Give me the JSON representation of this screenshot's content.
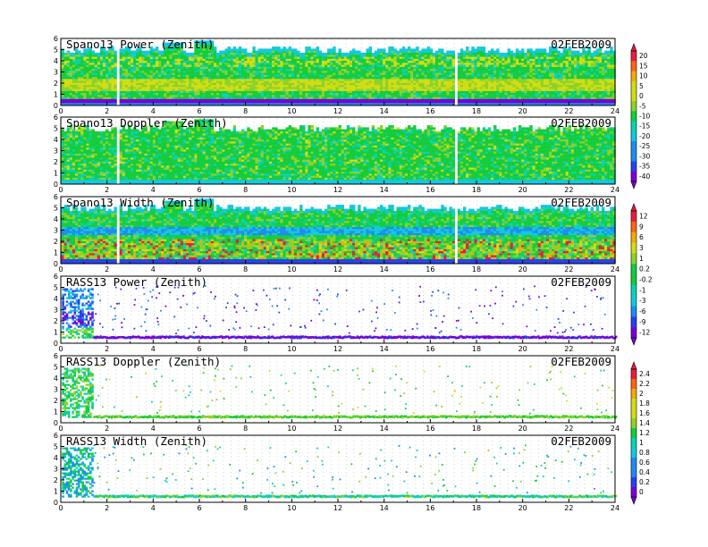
{
  "chart_data": [
    {
      "type": "heatmap",
      "title": "Spano13 Power (Zenith)",
      "date": "02FEB2009",
      "xlim": [
        0,
        24
      ],
      "ylim": [
        0,
        6
      ],
      "xticks": [
        "0",
        "2",
        "4",
        "6",
        "8",
        "10",
        "12",
        "14",
        "16",
        "18",
        "20",
        "22",
        "24"
      ],
      "yticks": [
        "0",
        "1",
        "2",
        "3",
        "4",
        "5",
        "6"
      ]
    },
    {
      "type": "heatmap",
      "title": "Spano13 Doppler (Zenith)",
      "date": "02FEB2009",
      "xlim": [
        0,
        24
      ],
      "ylim": [
        0,
        6
      ],
      "xticks": [
        "0",
        "2",
        "4",
        "6",
        "8",
        "10",
        "12",
        "14",
        "16",
        "18",
        "20",
        "22",
        "24"
      ],
      "yticks": [
        "0",
        "1",
        "2",
        "3",
        "4",
        "5",
        "6"
      ]
    },
    {
      "type": "heatmap",
      "title": "Spano13 Width (Zenith)",
      "date": "02FEB2009",
      "xlim": [
        0,
        24
      ],
      "ylim": [
        0,
        6
      ],
      "xticks": [
        "0",
        "2",
        "4",
        "6",
        "8",
        "10",
        "12",
        "14",
        "16",
        "18",
        "20",
        "22",
        "24"
      ],
      "yticks": [
        "0",
        "1",
        "2",
        "3",
        "4",
        "5",
        "6"
      ]
    },
    {
      "type": "heatmap",
      "title": "RASS13 Power (Zenith)",
      "date": "02FEB2009",
      "xlim": [
        0,
        24
      ],
      "ylim": [
        0,
        6
      ],
      "xticks": [
        "0",
        "2",
        "4",
        "6",
        "8",
        "10",
        "12",
        "14",
        "16",
        "18",
        "20",
        "22",
        "24"
      ],
      "yticks": [
        "0",
        "1",
        "2",
        "3",
        "4",
        "5",
        "6"
      ]
    },
    {
      "type": "heatmap",
      "title": "RASS13 Doppler (Zenith)",
      "date": "02FEB2009",
      "xlim": [
        0,
        24
      ],
      "ylim": [
        0,
        6
      ],
      "xticks": [
        "0",
        "2",
        "4",
        "6",
        "8",
        "10",
        "12",
        "14",
        "16",
        "18",
        "20",
        "22",
        "24"
      ],
      "yticks": [
        "0",
        "1",
        "2",
        "3",
        "4",
        "5",
        "6"
      ]
    },
    {
      "type": "heatmap",
      "title": "RASS13 Width (Zenith)",
      "date": "02FEB2009",
      "xlim": [
        0,
        24
      ],
      "ylim": [
        0,
        6
      ],
      "xticks": [
        "0",
        "2",
        "4",
        "6",
        "8",
        "10",
        "12",
        "14",
        "16",
        "18",
        "20",
        "22",
        "24"
      ],
      "yticks": [
        "0",
        "1",
        "2",
        "3",
        "4",
        "5",
        "6"
      ]
    }
  ],
  "colorbars": [
    {
      "labels": [
        "20",
        "15",
        "10",
        "5",
        "0",
        "-5",
        "-10",
        "-15",
        "-20",
        "-25",
        "-30",
        "-35",
        "-40"
      ]
    },
    {
      "labels": [
        "12",
        "9",
        "6",
        "3",
        "1",
        "0.2",
        "-0.2",
        "-1",
        "-3",
        "-6",
        "-9",
        "-12"
      ]
    },
    {
      "labels": [
        "2.4",
        "2.2",
        "2",
        "1.8",
        "1.6",
        "1.4",
        "1.2",
        "1",
        "0.8",
        "0.6",
        "0.4",
        "0.2",
        "0"
      ]
    }
  ],
  "colors": {
    "scale": [
      "#7a00d4",
      "#2840f0",
      "#1e8cf0",
      "#14c8dc",
      "#0ad2b4",
      "#14cc3c",
      "#8cd228",
      "#d2dc14",
      "#f0aa0a",
      "#ff6414",
      "#e61e3c"
    ],
    "power_mix": [
      "#14cc3c",
      "#14cc3c",
      "#14cc3c",
      "#0ad2b4",
      "#8cd228"
    ],
    "doppler_mix": [
      "#14cc3c",
      "#14cc3c",
      "#14cc3c",
      "#14cc3c",
      "#8cd228",
      "#0ad2b4"
    ]
  }
}
